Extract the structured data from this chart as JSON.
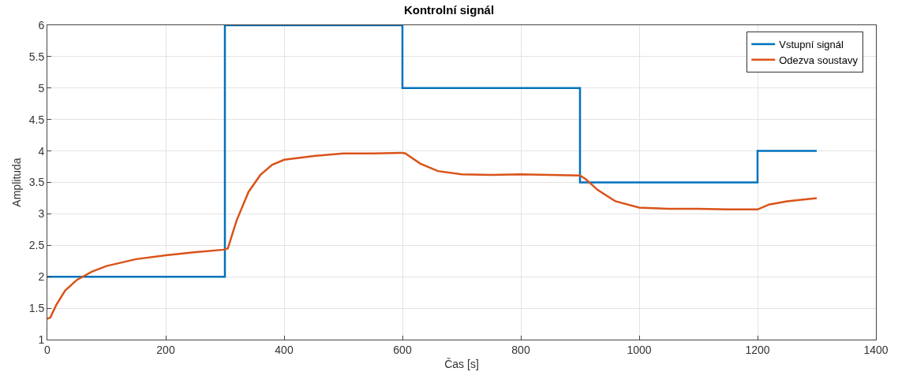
{
  "chart_data": {
    "type": "line",
    "title": "Kontrolní signál",
    "xlabel": "Čas [s]",
    "ylabel": "Amplituda",
    "xlim": [
      0,
      1400
    ],
    "xticks": [
      0,
      200,
      400,
      600,
      800,
      1000,
      1200,
      1400
    ],
    "ylim": [
      1,
      6
    ],
    "yticks": [
      1,
      1.5,
      2,
      2.5,
      3,
      3.5,
      4,
      4.5,
      5,
      5.5,
      6
    ],
    "grid": true,
    "legend": "top right",
    "line_style": "solid",
    "series": [
      {
        "name": "Vstupní signál",
        "type": "step",
        "color": "#0072bd",
        "x": [
          0,
          300,
          600,
          900,
          1200,
          1300
        ],
        "values": [
          2,
          6,
          5,
          3.5,
          4,
          4
        ]
      },
      {
        "name": "Odezva soustavy",
        "color": "#d95319",
        "x": [
          0,
          5,
          15,
          30,
          50,
          75,
          100,
          150,
          200,
          250,
          298,
          305,
          320,
          340,
          360,
          380,
          400,
          450,
          500,
          550,
          600,
          605,
          630,
          660,
          700,
          750,
          800,
          850,
          900,
          910,
          930,
          960,
          1000,
          1050,
          1100,
          1150,
          1200,
          1220,
          1250,
          1300
        ],
        "values": [
          1.33,
          1.35,
          1.55,
          1.78,
          1.95,
          2.08,
          2.17,
          2.28,
          2.34,
          2.39,
          2.43,
          2.45,
          2.9,
          3.35,
          3.62,
          3.78,
          3.86,
          3.92,
          3.96,
          3.96,
          3.97,
          3.96,
          3.8,
          3.68,
          3.63,
          3.62,
          3.63,
          3.62,
          3.61,
          3.55,
          3.38,
          3.2,
          3.1,
          3.08,
          3.08,
          3.07,
          3.07,
          3.15,
          3.2,
          3.25
        ]
      }
    ]
  }
}
